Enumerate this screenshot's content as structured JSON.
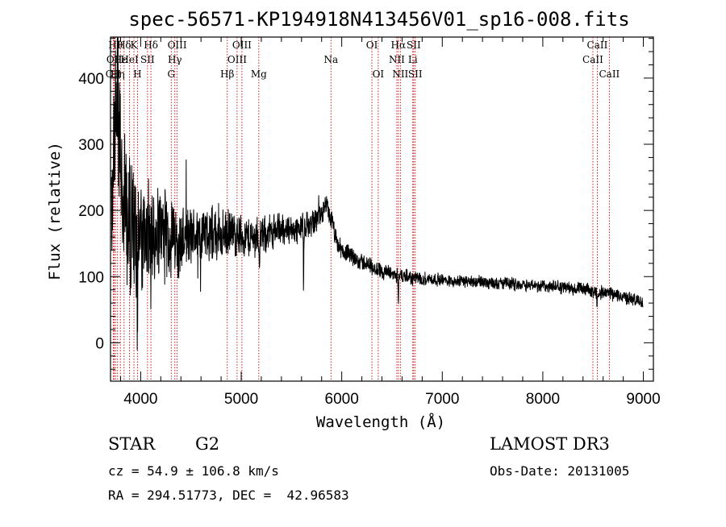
{
  "chart_data": {
    "type": "line",
    "title": "spec-56571-KP194918N413456V01_sp16-008.fits",
    "xlabel": "Wavelength (Å)",
    "ylabel": "Flux (relative)",
    "xlim": [
      3700,
      9100
    ],
    "ylim": [
      -58,
      462
    ],
    "xticks": [
      4000,
      5000,
      6000,
      7000,
      8000,
      9000
    ],
    "yticks": [
      0,
      100,
      200,
      300,
      400
    ],
    "xtick_labels": [
      "4000",
      "5000",
      "6000",
      "7000",
      "8000",
      "9000"
    ],
    "ytick_labels": [
      "0",
      "100",
      "200",
      "300",
      "400"
    ],
    "continuum_anchors": [
      [
        3700,
        100
      ],
      [
        3740,
        330
      ],
      [
        3760,
        380
      ],
      [
        3800,
        300
      ],
      [
        3850,
        210
      ],
      [
        3900,
        180
      ],
      [
        3950,
        170
      ],
      [
        4000,
        160
      ],
      [
        4100,
        170
      ],
      [
        4200,
        170
      ],
      [
        4300,
        160
      ],
      [
        4400,
        155
      ],
      [
        4500,
        160
      ],
      [
        4600,
        165
      ],
      [
        4700,
        165
      ],
      [
        4800,
        160
      ],
      [
        4900,
        165
      ],
      [
        5000,
        162
      ],
      [
        5100,
        158
      ],
      [
        5200,
        160
      ],
      [
        5300,
        168
      ],
      [
        5400,
        172
      ],
      [
        5500,
        170
      ],
      [
        5600,
        175
      ],
      [
        5700,
        180
      ],
      [
        5800,
        195
      ],
      [
        5850,
        205
      ],
      [
        5900,
        185
      ],
      [
        5950,
        150
      ],
      [
        6000,
        140
      ],
      [
        6100,
        130
      ],
      [
        6200,
        122
      ],
      [
        6300,
        115
      ],
      [
        6400,
        108
      ],
      [
        6500,
        104
      ],
      [
        6600,
        100
      ],
      [
        6700,
        98
      ],
      [
        6800,
        97
      ],
      [
        6900,
        96
      ],
      [
        7000,
        95
      ],
      [
        7200,
        93
      ],
      [
        7400,
        92
      ],
      [
        7600,
        90
      ],
      [
        7800,
        88
      ],
      [
        8000,
        86
      ],
      [
        8200,
        84
      ],
      [
        8400,
        80
      ],
      [
        8600,
        76
      ],
      [
        8800,
        70
      ],
      [
        9000,
        60
      ]
    ],
    "noise_profile": [
      [
        3700,
        140
      ],
      [
        3850,
        110
      ],
      [
        4100,
        75
      ],
      [
        4500,
        45
      ],
      [
        5000,
        32
      ],
      [
        5500,
        22
      ],
      [
        6000,
        14
      ],
      [
        7000,
        9
      ],
      [
        9000,
        10
      ]
    ],
    "absorption_features": [
      {
        "x": 3820,
        "depth": 260
      },
      {
        "x": 3900,
        "depth": 160
      },
      {
        "x": 3968,
        "depth": 190
      },
      {
        "x": 4100,
        "depth": 120
      },
      {
        "x": 5180,
        "depth": 60
      },
      {
        "x": 5620,
        "depth": 110
      },
      {
        "x": 6563,
        "depth": 55
      },
      {
        "x": 8540,
        "depth": 30
      }
    ],
    "spectral_lines": [
      {
        "x": 3727,
        "label": "OII",
        "row": 2
      },
      {
        "x": 3736,
        "label": "OII",
        "row": 1
      },
      {
        "x": 3750,
        "label": "Hθ",
        "row": 0
      },
      {
        "x": 3770,
        "label": "Hη",
        "row": 2
      },
      {
        "x": 3798,
        "label": "Hε",
        "row": 1
      },
      {
        "x": 3835,
        "label": "Hδ",
        "row": 0
      },
      {
        "x": 3889,
        "label": "HeI",
        "row": 1
      },
      {
        "x": 3933,
        "label": "K",
        "row": 0
      },
      {
        "x": 3968,
        "label": "H",
        "row": 2
      },
      {
        "x": 4068,
        "label": "SII",
        "row": 1
      },
      {
        "x": 4102,
        "label": "Hδ",
        "row": 0
      },
      {
        "x": 4304,
        "label": "G",
        "row": 2
      },
      {
        "x": 4340,
        "label": "Hγ",
        "row": 1
      },
      {
        "x": 4363,
        "label": "OIII",
        "row": 0
      },
      {
        "x": 4861,
        "label": "Hβ",
        "row": 2
      },
      {
        "x": 4959,
        "label": "OIII",
        "row": 1
      },
      {
        "x": 5007,
        "label": "OIII",
        "row": 0
      },
      {
        "x": 5175,
        "label": "Mg",
        "row": 2
      },
      {
        "x": 5893,
        "label": "Na",
        "row": 1
      },
      {
        "x": 6300,
        "label": "OI",
        "row": 0
      },
      {
        "x": 6363,
        "label": "OI",
        "row": 2
      },
      {
        "x": 6548,
        "label": "NII",
        "row": 1
      },
      {
        "x": 6563,
        "label": "Hα",
        "row": 0
      },
      {
        "x": 6583,
        "label": "NII",
        "row": 2
      },
      {
        "x": 6707,
        "label": "Li",
        "row": 1
      },
      {
        "x": 6716,
        "label": "SII",
        "row": 0
      },
      {
        "x": 6731,
        "label": "SII",
        "row": 2
      },
      {
        "x": 8498,
        "label": "CaII",
        "row": 1
      },
      {
        "x": 8542,
        "label": "CaII",
        "row": 0
      },
      {
        "x": 8662,
        "label": "CaII",
        "row": 2
      }
    ],
    "colors": {
      "spectrum": "#000000",
      "lines": "#cc0000",
      "axes": "#000000"
    }
  },
  "info": {
    "class_label": "STAR",
    "subclass_label": "G2",
    "survey_label": "LAMOST DR3",
    "cz_text": "cz = 54.9 ± 106.8 km/s",
    "obs_date_text": "Obs-Date: 20131005",
    "radec_text": "RA = 294.51773, DEC =  42.96583"
  }
}
